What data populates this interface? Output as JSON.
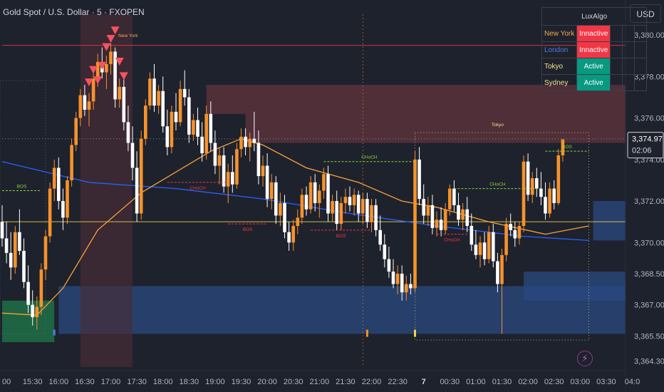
{
  "header": {
    "title": "Gold Spot / U.S. Dollar · 5 · FXOPEN",
    "currency": "USD"
  },
  "session_table": {
    "title": "LuxAlgo",
    "rows": [
      {
        "name": "New York",
        "status": "Innactive",
        "name_color": "#f7a64b",
        "status_color": "#f23645"
      },
      {
        "name": "London",
        "status": "Innactive",
        "name_color": "#4c7ee8",
        "status_color": "#f23645"
      },
      {
        "name": "Tokyo",
        "status": "Active",
        "name_color": "#f6e38a",
        "status_color": "#089981"
      },
      {
        "name": "Sydney",
        "status": "Active",
        "name_color": "#f6e38a",
        "status_color": "#089981"
      }
    ]
  },
  "colors": {
    "background": "#1e222d",
    "bull_candle": "#f7922b",
    "bear_candle": "#ffffff",
    "ema_fast": "#f7a23a",
    "ema_slow": "#2962ff",
    "price_line": "#f23645",
    "bos": "#8bd13a",
    "choch_bear": "#f23645",
    "supply_zone": "#7a3b44",
    "demand_zone": "#2a4a80"
  },
  "icons": {
    "alert": "lightning-icon"
  },
  "chart_data": {
    "type": "candlestick",
    "symbol": "Gold Spot / U.S. Dollar",
    "interval": "5",
    "exchange": "FXOPEN",
    "ylim": [
      3364.0,
      3381.0
    ],
    "y_ticks": [
      "3,380.00",
      "3,378.00",
      "3,376.00",
      "3,374.00",
      "3,372.00",
      "3,370.00",
      "3,368.50",
      "3,367.00",
      "3,365.50",
      "3,364.30"
    ],
    "y_tick_values": [
      3380.0,
      3378.0,
      3376.0,
      3374.0,
      3372.0,
      3370.0,
      3368.5,
      3367.0,
      3365.5,
      3364.3
    ],
    "x_ticks": [
      "00",
      "15:30",
      "16:00",
      "16:30",
      "17:00",
      "17:30",
      "18:00",
      "18:30",
      "19:00",
      "19:30",
      "20:00",
      "20:30",
      "21:00",
      "21:30",
      "22:00",
      "22:30",
      "7",
      "00:30",
      "01:00",
      "01:30",
      "02:00",
      "02:30",
      "03:00",
      "03:30",
      "04:0"
    ],
    "x_tick_index": [
      1,
      7,
      13,
      19,
      25,
      31,
      37,
      43,
      49,
      55,
      61,
      67,
      73,
      79,
      85,
      91,
      97,
      103,
      109,
      115,
      121,
      127,
      133,
      139,
      145
    ],
    "candles": [
      [
        3371.0,
        3371.8,
        3369.8,
        3370.2
      ],
      [
        3370.2,
        3371.0,
        3369.0,
        3369.5
      ],
      [
        3369.5,
        3370.5,
        3368.2,
        3368.8
      ],
      [
        3368.8,
        3370.8,
        3368.5,
        3370.5
      ],
      [
        3370.5,
        3371.6,
        3369.4,
        3369.6
      ],
      [
        3369.6,
        3370.2,
        3367.8,
        3368.1
      ],
      [
        3368.1,
        3368.9,
        3366.6,
        3367.0
      ],
      [
        3367.0,
        3367.7,
        3366.0,
        3366.4
      ],
      [
        3366.4,
        3367.4,
        3365.8,
        3366.9
      ],
      [
        3366.9,
        3369.0,
        3366.5,
        3368.7
      ],
      [
        3368.7,
        3370.6,
        3368.2,
        3370.3
      ],
      [
        3370.3,
        3372.9,
        3370.0,
        3372.6
      ],
      [
        3372.6,
        3374.0,
        3372.0,
        3373.6
      ],
      [
        3373.6,
        3374.1,
        3371.6,
        3372.0
      ],
      [
        3372.0,
        3372.6,
        3370.6,
        3371.2
      ],
      [
        3371.2,
        3373.2,
        3370.9,
        3373.0
      ],
      [
        3373.0,
        3375.0,
        3372.7,
        3374.7
      ],
      [
        3374.7,
        3376.3,
        3374.4,
        3376.0
      ],
      [
        3376.0,
        3377.4,
        3375.6,
        3377.1
      ],
      [
        3377.1,
        3377.6,
        3376.1,
        3376.4
      ],
      [
        3376.4,
        3377.2,
        3375.6,
        3376.8
      ],
      [
        3376.8,
        3378.2,
        3376.4,
        3377.9
      ],
      [
        3377.9,
        3379.1,
        3377.5,
        3378.7
      ],
      [
        3378.7,
        3379.4,
        3377.9,
        3378.2
      ],
      [
        3378.2,
        3379.0,
        3377.4,
        3378.6
      ],
      [
        3378.6,
        3379.6,
        3378.1,
        3379.2
      ],
      [
        3379.2,
        3379.4,
        3376.5,
        3376.9
      ],
      [
        3376.9,
        3377.9,
        3376.5,
        3377.5
      ],
      [
        3377.5,
        3378.0,
        3375.4,
        3375.8
      ],
      [
        3375.8,
        3376.6,
        3374.4,
        3374.8
      ],
      [
        3374.8,
        3375.6,
        3373.0,
        3373.6
      ],
      [
        3373.6,
        3374.4,
        3371.0,
        3371.4
      ],
      [
        3371.4,
        3375.4,
        3371.1,
        3375.0
      ],
      [
        3375.0,
        3376.9,
        3374.7,
        3376.6
      ],
      [
        3376.6,
        3378.2,
        3376.4,
        3377.9
      ],
      [
        3377.9,
        3378.6,
        3376.3,
        3376.6
      ],
      [
        3376.6,
        3377.6,
        3376.2,
        3377.3
      ],
      [
        3377.3,
        3378.0,
        3375.3,
        3375.6
      ],
      [
        3375.6,
        3376.4,
        3374.2,
        3374.6
      ],
      [
        3374.6,
        3376.6,
        3374.3,
        3376.3
      ],
      [
        3376.3,
        3377.2,
        3375.4,
        3375.8
      ],
      [
        3375.8,
        3377.8,
        3375.6,
        3377.4
      ],
      [
        3377.4,
        3378.3,
        3376.6,
        3377.0
      ],
      [
        3377.0,
        3377.4,
        3374.8,
        3375.2
      ],
      [
        3375.2,
        3376.2,
        3374.9,
        3375.9
      ],
      [
        3375.9,
        3376.5,
        3374.7,
        3375.1
      ],
      [
        3375.1,
        3375.8,
        3373.9,
        3374.3
      ],
      [
        3374.3,
        3376.6,
        3374.0,
        3376.2
      ],
      [
        3376.2,
        3376.8,
        3374.4,
        3374.8
      ],
      [
        3374.8,
        3375.4,
        3373.3,
        3373.7
      ],
      [
        3373.7,
        3374.6,
        3372.8,
        3374.2
      ],
      [
        3374.2,
        3374.6,
        3372.4,
        3372.7
      ],
      [
        3372.7,
        3373.8,
        3371.9,
        3373.4
      ],
      [
        3373.4,
        3374.2,
        3372.4,
        3372.8
      ],
      [
        3372.8,
        3374.8,
        3372.6,
        3374.5
      ],
      [
        3374.5,
        3375.5,
        3374.1,
        3375.1
      ],
      [
        3375.1,
        3375.5,
        3374.2,
        3374.6
      ],
      [
        3374.6,
        3375.3,
        3373.9,
        3375.0
      ],
      [
        3375.0,
        3376.3,
        3374.4,
        3374.8
      ],
      [
        3374.8,
        3375.4,
        3372.8,
        3373.2
      ],
      [
        3373.2,
        3374.2,
        3372.7,
        3373.7
      ],
      [
        3373.7,
        3374.3,
        3371.7,
        3372.1
      ],
      [
        3372.1,
        3373.3,
        3371.6,
        3372.9
      ],
      [
        3372.9,
        3373.2,
        3370.9,
        3371.3
      ],
      [
        3371.3,
        3372.4,
        3370.8,
        3371.9
      ],
      [
        3371.9,
        3372.3,
        3370.2,
        3370.5
      ],
      [
        3370.5,
        3371.0,
        3369.6,
        3370.0
      ],
      [
        3370.0,
        3371.1,
        3369.6,
        3370.8
      ],
      [
        3370.8,
        3371.6,
        3370.4,
        3371.2
      ],
      [
        3371.2,
        3372.6,
        3370.9,
        3372.3
      ],
      [
        3372.3,
        3372.7,
        3371.3,
        3371.6
      ],
      [
        3371.6,
        3373.2,
        3371.4,
        3372.9
      ],
      [
        3372.9,
        3373.3,
        3371.5,
        3371.9
      ],
      [
        3371.9,
        3372.8,
        3371.2,
        3372.5
      ],
      [
        3372.5,
        3373.6,
        3372.1,
        3373.3
      ],
      [
        3373.3,
        3373.7,
        3371.0,
        3371.4
      ],
      [
        3371.4,
        3372.3,
        3371.0,
        3372.0
      ],
      [
        3372.0,
        3372.5,
        3370.6,
        3370.9
      ],
      [
        3370.9,
        3372.2,
        3370.6,
        3371.9
      ],
      [
        3371.9,
        3372.6,
        3371.4,
        3372.2
      ],
      [
        3372.2,
        3372.7,
        3371.5,
        3371.8
      ],
      [
        3371.8,
        3372.6,
        3371.3,
        3372.3
      ],
      [
        3372.3,
        3372.5,
        3371.0,
        3371.4
      ],
      [
        3371.4,
        3372.4,
        3370.9,
        3372.1
      ],
      [
        3372.1,
        3372.4,
        3370.7,
        3371.0
      ],
      [
        3371.0,
        3372.1,
        3370.5,
        3371.8
      ],
      [
        3371.8,
        3372.1,
        3370.3,
        3370.6
      ],
      [
        3370.6,
        3371.3,
        3369.6,
        3369.9
      ],
      [
        3369.9,
        3370.4,
        3368.8,
        3369.2
      ],
      [
        3369.2,
        3369.8,
        3368.3,
        3368.6
      ],
      [
        3368.6,
        3369.2,
        3367.8,
        3368.0
      ],
      [
        3368.0,
        3368.9,
        3367.5,
        3368.5
      ],
      [
        3368.5,
        3368.9,
        3367.2,
        3367.6
      ],
      [
        3367.6,
        3368.4,
        3367.2,
        3368.0
      ],
      [
        3368.0,
        3368.5,
        3367.5,
        3367.8
      ],
      [
        3367.8,
        3374.4,
        3367.6,
        3374.0
      ],
      [
        3374.0,
        3374.6,
        3371.8,
        3372.1
      ],
      [
        3372.1,
        3372.8,
        3370.9,
        3371.3
      ],
      [
        3371.3,
        3372.2,
        3370.8,
        3371.8
      ],
      [
        3371.8,
        3372.3,
        3370.4,
        3370.7
      ],
      [
        3370.7,
        3371.5,
        3370.3,
        3371.1
      ],
      [
        3371.1,
        3371.7,
        3370.3,
        3370.6
      ],
      [
        3370.6,
        3371.9,
        3370.4,
        3371.6
      ],
      [
        3371.6,
        3372.8,
        3371.3,
        3372.6
      ],
      [
        3372.6,
        3373.0,
        3371.5,
        3371.8
      ],
      [
        3371.8,
        3372.4,
        3370.8,
        3371.1
      ],
      [
        3371.1,
        3371.9,
        3370.6,
        3371.6
      ],
      [
        3371.6,
        3372.2,
        3370.5,
        3370.8
      ],
      [
        3370.8,
        3371.4,
        3369.6,
        3369.9
      ],
      [
        3369.9,
        3370.6,
        3369.2,
        3369.4
      ],
      [
        3369.4,
        3370.3,
        3368.8,
        3370.0
      ],
      [
        3370.0,
        3370.5,
        3368.9,
        3369.2
      ],
      [
        3369.2,
        3370.8,
        3369.0,
        3370.5
      ],
      [
        3370.5,
        3370.9,
        3368.8,
        3369.1
      ],
      [
        3369.1,
        3369.5,
        3367.6,
        3368.0
      ],
      [
        3368.0,
        3369.7,
        3365.6,
        3369.4
      ],
      [
        3369.4,
        3371.2,
        3369.1,
        3370.9
      ],
      [
        3370.9,
        3371.4,
        3370.3,
        3370.6
      ],
      [
        3370.6,
        3371.0,
        3369.8,
        3370.2
      ],
      [
        3370.2,
        3371.0,
        3369.9,
        3370.8
      ],
      [
        3370.8,
        3374.2,
        3370.5,
        3373.9
      ],
      [
        3373.9,
        3374.3,
        3372.0,
        3372.3
      ],
      [
        3372.3,
        3373.4,
        3371.9,
        3373.1
      ],
      [
        3373.1,
        3373.6,
        3372.2,
        3372.6
      ],
      [
        3372.6,
        3373.4,
        3371.8,
        3372.2
      ],
      [
        3372.2,
        3372.9,
        3371.1,
        3371.4
      ],
      [
        3371.4,
        3372.9,
        3371.2,
        3372.6
      ],
      [
        3372.6,
        3373.0,
        3371.6,
        3371.9
      ],
      [
        3371.9,
        3374.5,
        3371.8,
        3374.2
      ],
      [
        3374.2,
        3374.97,
        3373.9,
        3374.97
      ]
    ],
    "ema_fast": [
      [
        0,
        3366.6
      ],
      [
        8,
        3366.5
      ],
      [
        14,
        3367.8
      ],
      [
        22,
        3370.6
      ],
      [
        32,
        3372.4
      ],
      [
        40,
        3373.4
      ],
      [
        48,
        3374.4
      ],
      [
        55,
        3375.0
      ],
      [
        60,
        3374.7
      ],
      [
        70,
        3373.6
      ],
      [
        82,
        3372.9
      ],
      [
        92,
        3372.0
      ],
      [
        100,
        3371.7
      ],
      [
        112,
        3371.0
      ],
      [
        125,
        3370.4
      ],
      [
        135,
        3370.8
      ]
    ],
    "ema_slow": [
      [
        0,
        3373.9
      ],
      [
        20,
        3372.9
      ],
      [
        40,
        3372.6
      ],
      [
        60,
        3372.1
      ],
      [
        80,
        3371.4
      ],
      [
        100,
        3370.8
      ],
      [
        120,
        3370.3
      ],
      [
        135,
        3370.1
      ]
    ],
    "hlines": [
      {
        "value": 3379.5,
        "color": "#f23645",
        "from_index": 0,
        "to_index": 146,
        "style": "solid"
      },
      {
        "value": 3375.0,
        "color": "#9598a1",
        "from_index": 0,
        "to_index": 146,
        "style": "dotted"
      },
      {
        "value": 3371.0,
        "color": "#f6d347",
        "from_index": 0,
        "to_index": 146,
        "style": "solid"
      }
    ],
    "zones": [
      {
        "kind": "supply",
        "top": 3377.6,
        "bottom": 3376.2,
        "from_index": 47,
        "to_index": 146
      },
      {
        "kind": "supply",
        "top": 3376.2,
        "bottom": 3374.8,
        "from_index": 56,
        "to_index": 146
      },
      {
        "kind": "demand",
        "top": 3367.9,
        "bottom": 3365.6,
        "from_index": 13,
        "to_index": 146
      },
      {
        "kind": "demand",
        "top": 3372.0,
        "bottom": 3370.1,
        "from_index": 136,
        "to_index": 146
      },
      {
        "kind": "demand",
        "top": 3368.6,
        "bottom": 3367.2,
        "from_index": 120,
        "to_index": 146
      },
      {
        "kind": "demand-green",
        "top": 3367.2,
        "bottom": 3365.2,
        "from_index": 0,
        "to_index": 12
      }
    ],
    "structure_labels": [
      {
        "text": "BOS",
        "value": 3372.5,
        "from_index": 0,
        "to_index": 9,
        "color": "#8bd13a",
        "above": true
      },
      {
        "text": "CHoCH",
        "value": 3372.9,
        "from_index": 38,
        "to_index": 52,
        "color": "#f23645",
        "above": false
      },
      {
        "text": "BOS",
        "value": 3370.9,
        "from_index": 52,
        "to_index": 61,
        "color": "#f23645",
        "above": false
      },
      {
        "text": "CHoCH",
        "value": 3373.9,
        "from_index": 74,
        "to_index": 95,
        "color": "#8bd13a",
        "above": true
      },
      {
        "text": "BOS",
        "value": 3370.6,
        "from_index": 71,
        "to_index": 85,
        "color": "#f23645",
        "above": false
      },
      {
        "text": "CHoCH",
        "value": 3372.6,
        "from_index": 104,
        "to_index": 124,
        "color": "#8bd13a",
        "above": true
      },
      {
        "text": "CHoCH",
        "value": 3370.4,
        "from_index": 100,
        "to_index": 107,
        "color": "#f23645",
        "above": false
      },
      {
        "text": "BOS",
        "value": 3374.4,
        "from_index": 125,
        "to_index": 135,
        "color": "#8bd13a",
        "above": true
      }
    ],
    "session_labels": [
      {
        "text": "New York",
        "index": 29,
        "value": 3379.9,
        "color": "#f7a64b"
      },
      {
        "text": "Tokyo",
        "index": 114,
        "value": 3375.6,
        "color": "#f6e38a"
      }
    ],
    "signal_triangles": [
      [
        20,
        3377.7
      ],
      [
        21,
        3378.3
      ],
      [
        22,
        3377.8
      ],
      [
        23,
        3378.5
      ],
      [
        24,
        3379.4
      ],
      [
        25,
        3379.8
      ],
      [
        26,
        3380.2
      ],
      [
        27,
        3378.7
      ],
      [
        28,
        3378.0
      ]
    ],
    "last_price_label": "3,374.97",
    "countdown_label": "02:06",
    "last_price": 3374.97
  }
}
